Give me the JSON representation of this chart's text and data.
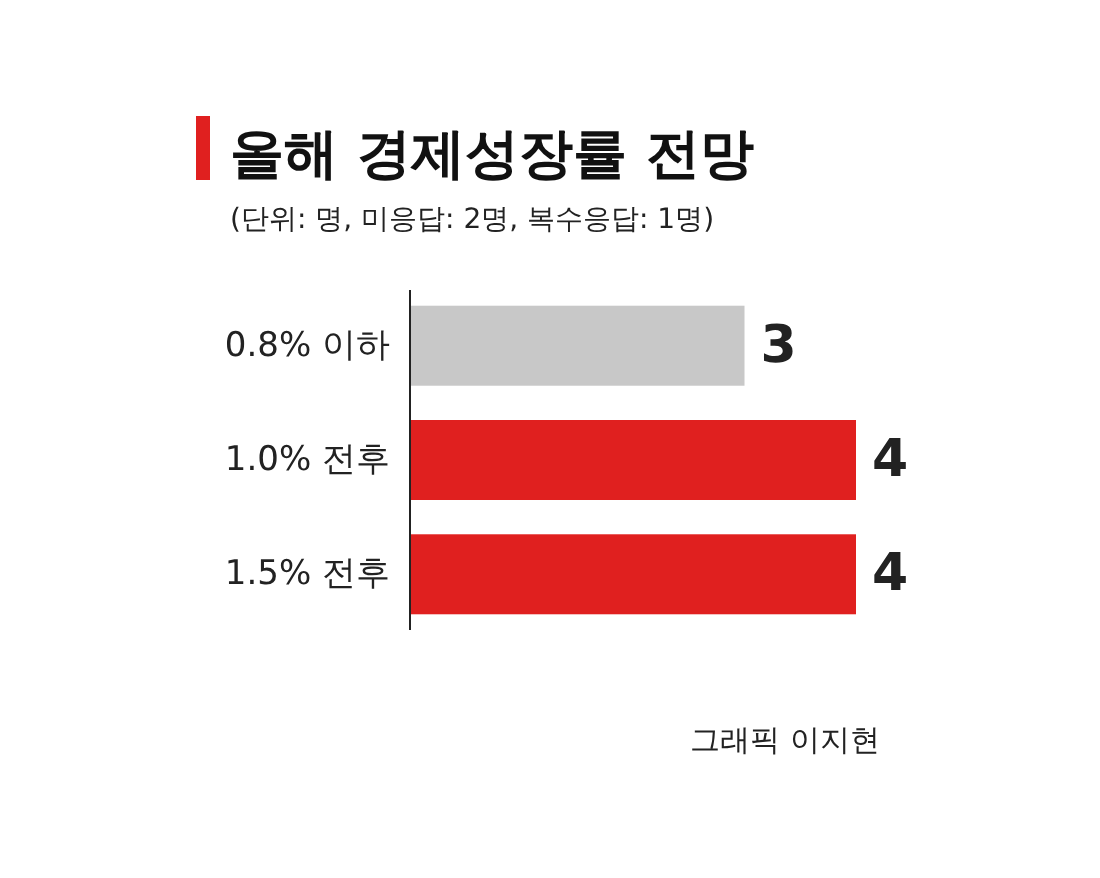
{
  "chart_data": {
    "type": "bar",
    "orientation": "horizontal",
    "title": "올해 경제성장률 전망",
    "subtitle": "(단위: 명, 미응답: 2명, 복수응답: 1명)",
    "categories": [
      "0.8% 이하",
      "1.0% 전후",
      "1.5% 전후"
    ],
    "values": [
      3,
      4,
      4
    ],
    "colors": [
      "#c8c8c8",
      "#e0201f",
      "#e0201f"
    ],
    "data_labels": true,
    "annotations": [
      "그래픽 이지현"
    ]
  }
}
